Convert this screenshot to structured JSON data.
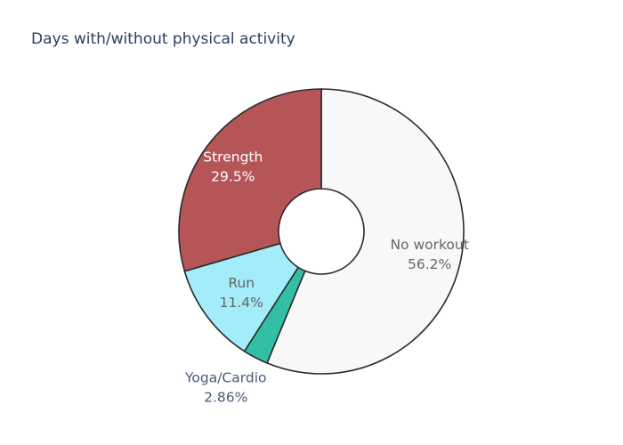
{
  "chart_data": {
    "type": "pie",
    "title": "Days with/without physical activity",
    "hole": 0.3,
    "slices": [
      {
        "label": "No workout",
        "percent_text": "56.2%",
        "value": 56.2,
        "color": "#f8f8f8",
        "text_color": "#666666",
        "label_position": "inside"
      },
      {
        "label": "Yoga/Cardio",
        "percent_text": "2.86%",
        "value": 2.86,
        "color": "#33bfa6",
        "text_color": "#4a5a78",
        "label_position": "outside"
      },
      {
        "label": "Run",
        "percent_text": "11.4%",
        "value": 11.4,
        "color": "#a3ecfa",
        "text_color": "#666666",
        "label_position": "inside"
      },
      {
        "label": "Strength",
        "percent_text": "29.5%",
        "value": 29.5,
        "color": "#b55558",
        "text_color": "#ffffff",
        "label_position": "inside"
      }
    ],
    "stroke_color": "#2b2b2b",
    "direction": "clockwise",
    "start": "top"
  }
}
